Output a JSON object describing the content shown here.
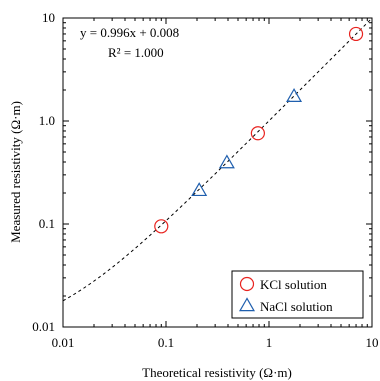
{
  "chart_data": {
    "type": "scatter",
    "xlabel": "Theoretical resistivity (Ω·m)",
    "ylabel": "Measured resistivity (Ω·m)",
    "x_scale": "log",
    "y_scale": "log",
    "xlim": [
      0.01,
      10
    ],
    "ylim": [
      0.01,
      10
    ],
    "x_ticks": [
      0.01,
      0.1,
      1,
      10
    ],
    "y_ticks": [
      0.01,
      0.1,
      1.0,
      10
    ],
    "x_tick_labels": [
      "0.01",
      "0.1",
      "1",
      "10"
    ],
    "y_tick_labels": [
      "0.01",
      "0.1",
      "1.0",
      "10"
    ],
    "grid": false,
    "legend_position": "bottom-right",
    "annotations": {
      "equation": "y = 0.996x + 0.008",
      "r_squared": "R² = 1.000"
    },
    "fit_line": {
      "slope": 0.996,
      "intercept": 0.008,
      "style": "dashed"
    },
    "series": [
      {
        "name": "KCl solution",
        "marker": "circle",
        "color": "#e8231f",
        "points": [
          {
            "x": 0.09,
            "y": 0.095
          },
          {
            "x": 0.78,
            "y": 0.76
          },
          {
            "x": 7.0,
            "y": 7.0
          }
        ]
      },
      {
        "name": "NaCl solution",
        "marker": "triangle",
        "color": "#1f5fae",
        "points": [
          {
            "x": 0.21,
            "y": 0.21
          },
          {
            "x": 0.39,
            "y": 0.39
          },
          {
            "x": 1.75,
            "y": 1.72
          }
        ]
      }
    ]
  }
}
